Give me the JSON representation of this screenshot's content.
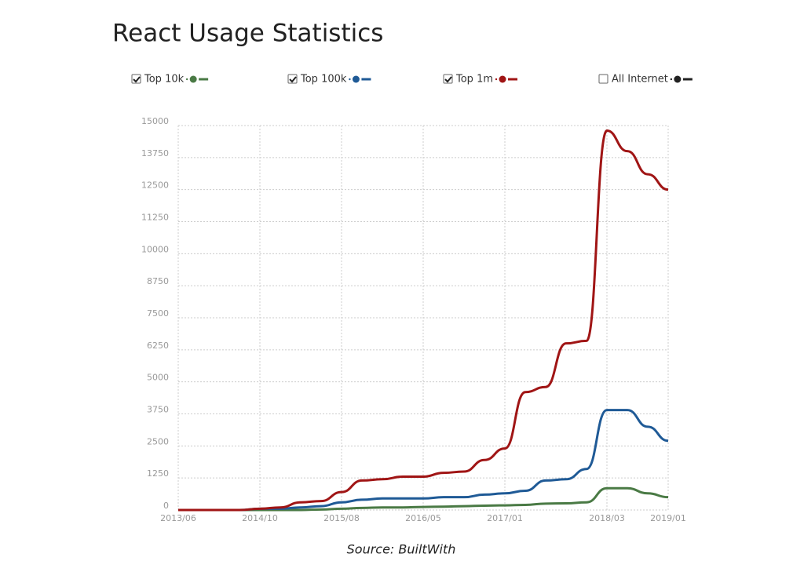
{
  "chart_data": {
    "type": "line",
    "title": "React Usage Statistics",
    "source": "Source: BuiltWith",
    "categories": [
      "2013/06",
      null,
      null,
      null,
      "2014/10",
      null,
      null,
      null,
      "2015/08",
      null,
      null,
      null,
      "2016/05",
      null,
      null,
      null,
      "2017/01",
      null,
      null,
      null,
      null,
      "2018/03",
      null,
      null,
      "2019/01"
    ],
    "series": [
      {
        "name": "Top 10k",
        "color": "#4a7a45",
        "checked": true,
        "values": [
          0,
          0,
          0,
          0,
          0,
          0,
          0,
          20,
          50,
          80,
          100,
          100,
          120,
          130,
          150,
          170,
          180,
          200,
          250,
          260,
          300,
          850,
          850,
          650,
          500
        ]
      },
      {
        "name": "Top 100k",
        "color": "#1f5a96",
        "checked": true,
        "values": [
          0,
          0,
          0,
          0,
          50,
          50,
          100,
          150,
          300,
          400,
          450,
          450,
          450,
          500,
          500,
          600,
          650,
          750,
          1150,
          1200,
          1600,
          3900,
          3900,
          3250,
          2700
        ]
      },
      {
        "name": "Top 1m",
        "color": "#a01515",
        "checked": true,
        "values": [
          0,
          0,
          0,
          0,
          50,
          100,
          300,
          350,
          700,
          1150,
          1200,
          1300,
          1300,
          1450,
          1500,
          1950,
          2400,
          4600,
          4800,
          6500,
          6600,
          14800,
          14000,
          13100,
          12500
        ]
      }
    ],
    "inactive_series": [
      {
        "name": "All Internet",
        "color": "#222222",
        "checked": false
      }
    ],
    "ylim": [
      0,
      15000
    ],
    "yticks": [
      0,
      1250,
      2500,
      3750,
      5000,
      6250,
      7500,
      8750,
      10000,
      11250,
      12500,
      13750,
      15000
    ],
    "grid": true
  }
}
